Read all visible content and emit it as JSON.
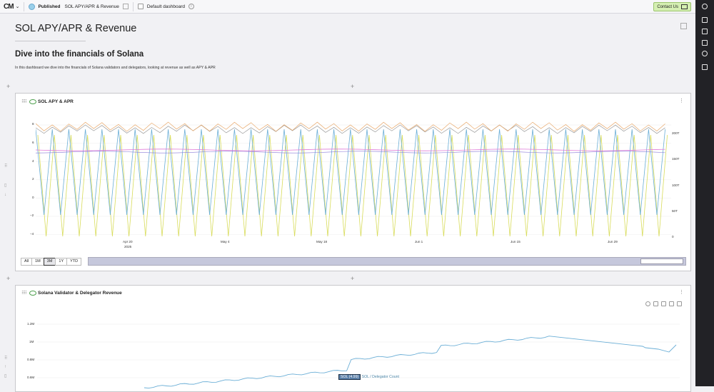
{
  "topbar": {
    "logo": "CM",
    "status": "Published",
    "dashboard_title": "SOL APY/APR & Revenue",
    "default_label": "Default dashboard",
    "contact_label": "Contact Us"
  },
  "page": {
    "title": "SOL APY/APR & Revenue",
    "subtitle": "Dive into the financials of Solana",
    "description": "In this dashboard we dive into the financials of Solana validators and delegators, looking at revenue as well as APY & APR"
  },
  "panel1": {
    "title": "SOL APY & APR",
    "y_left": [
      "8",
      "6",
      "4",
      "2",
      "0",
      "−2",
      "−4"
    ],
    "y_right": [
      "200T",
      "150T",
      "100T",
      "50T",
      "0"
    ],
    "x_labels": [
      "Apr 20",
      "May 4",
      "May 18",
      "Jun 1",
      "Jun 15",
      "Jun 29"
    ],
    "x_year": "2025",
    "ranges": [
      "All",
      "1M",
      "3M",
      "1Y",
      "YTD"
    ],
    "active_range": "3M"
  },
  "panel2": {
    "title": "Solana Validator & Delegator Revenue",
    "y_labels": [
      "1.2M",
      "1M",
      "0.8M",
      "0.6M"
    ],
    "tooltip_highlight": "SOL (4.99)",
    "tooltip_series": "SOL / Delegator Count"
  },
  "colors": {
    "blue": "#6aaed6",
    "yellow": "#d8dc5a",
    "orange": "#e8a86a",
    "gray": "#9a9a9a",
    "pink": "#e07ad8",
    "purple": "#8a7ad8",
    "accent_green": "#d5efb2"
  },
  "icons": [
    "chevron-down-icon",
    "globe-icon",
    "edit-icon",
    "info-icon",
    "mail-icon",
    "key-icon",
    "file-icon",
    "folder-icon",
    "save-icon",
    "share-icon",
    "download-icon",
    "eye-icon",
    "kebab-icon",
    "zoom-in-icon",
    "plus-icon",
    "close-icon"
  ]
}
